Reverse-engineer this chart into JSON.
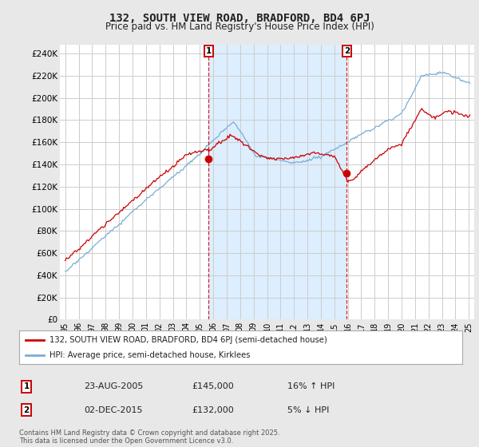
{
  "title": "132, SOUTH VIEW ROAD, BRADFORD, BD4 6PJ",
  "subtitle": "Price paid vs. HM Land Registry's House Price Index (HPI)",
  "ylim": [
    0,
    248000
  ],
  "yticks": [
    0,
    20000,
    40000,
    60000,
    80000,
    100000,
    120000,
    140000,
    160000,
    180000,
    200000,
    220000,
    240000
  ],
  "ytick_labels": [
    "£0",
    "£20K",
    "£40K",
    "£60K",
    "£80K",
    "£100K",
    "£120K",
    "£140K",
    "£160K",
    "£180K",
    "£200K",
    "£220K",
    "£240K"
  ],
  "sale1_year": 2005.65,
  "sale1_price": 145000,
  "sale1_label": "1",
  "sale1_date": "23-AUG-2005",
  "sale1_hpi_pct": "16% ↑ HPI",
  "sale2_year": 2015.92,
  "sale2_price": 132000,
  "sale2_label": "2",
  "sale2_date": "02-DEC-2015",
  "sale2_hpi_pct": "5% ↓ HPI",
  "red_color": "#cc0000",
  "blue_color": "#7aadd4",
  "shade_color": "#ddeeff",
  "legend1": "132, SOUTH VIEW ROAD, BRADFORD, BD4 6PJ (semi-detached house)",
  "legend2": "HPI: Average price, semi-detached house, Kirklees",
  "footer": "Contains HM Land Registry data © Crown copyright and database right 2025.\nThis data is licensed under the Open Government Licence v3.0.",
  "bg_color": "#e8e8e8",
  "plot_bg": "#ffffff",
  "grid_color": "#cccccc",
  "title_fontsize": 10,
  "subtitle_fontsize": 8.5
}
